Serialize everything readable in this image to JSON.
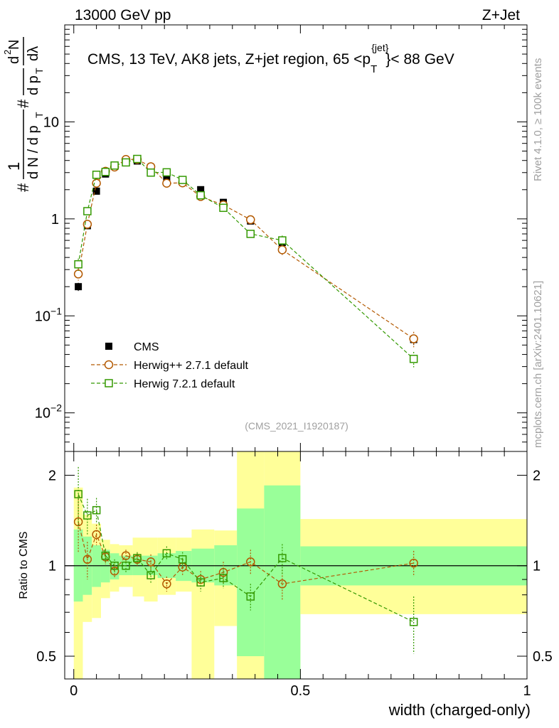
{
  "header": {
    "left": "13000 GeV pp",
    "right": "Z+Jet"
  },
  "labels": {
    "title_main": "CMS, 13 TeV, AK8 jets, Z+jet region, 65 <p",
    "title_sup": "{jet}",
    "title_sub": "T",
    "title_end": "}< 88 GeV",
    "analysis_id": "(CMS_2021_I1920187)",
    "side_rivet": "Rivet 4.1.0, ≥ 100k events",
    "side_mcplots": "mcplots.cern.ch [arXiv:2401.10621]",
    "xlabel": "width (charged-only)",
    "ratio_ylabel": "Ratio to CMS"
  },
  "colors": {
    "data": "#000000",
    "herwigpp": "#b35900",
    "herwig7": "#339900",
    "band_inner": "#99ff99",
    "band_outer": "#ffff99"
  },
  "chart_data": [
    {
      "type": "scatter",
      "name": "main",
      "yscale": "log",
      "ylim": [
        0.004,
        100
      ],
      "xlim": [
        -0.02,
        1.0
      ],
      "yticks": [
        {
          "v": 0.01,
          "base": "10",
          "exp": "−2"
        },
        {
          "v": 0.1,
          "base": "10",
          "exp": "−1"
        },
        {
          "v": 1,
          "base": "1",
          "exp": ""
        },
        {
          "v": 10,
          "base": "10",
          "exp": ""
        }
      ],
      "ylabel_parts": [
        "#",
        "1",
        "d N / d p",
        "T",
        "#",
        "d p",
        "T",
        "d",
        "2",
        "N",
        "dλ"
      ],
      "legend": [
        "CMS",
        "Herwig++ 2.7.1 default",
        "Herwig 7.2.1 default"
      ],
      "legend_position": "middle-left",
      "x": [
        0.01,
        0.03,
        0.05,
        0.07,
        0.09,
        0.115,
        0.14,
        0.17,
        0.205,
        0.24,
        0.28,
        0.33,
        0.39,
        0.46,
        0.75
      ],
      "series": [
        {
          "name": "CMS",
          "values": [
            0.2,
            0.85,
            1.93,
            2.9,
            3.52,
            3.8,
            3.95,
            3.38,
            2.7,
            2.42,
            2.0,
            1.48,
            0.95,
            0.57,
            0.057
          ]
        },
        {
          "name": "Herwig++ 2.7.1 default",
          "values": [
            0.27,
            0.88,
            2.33,
            3.1,
            3.42,
            4.1,
            4.1,
            3.45,
            2.33,
            2.35,
            1.7,
            1.39,
            0.98,
            0.48,
            0.058
          ]
        },
        {
          "name": "Herwig 7.2.1 default",
          "values": [
            0.34,
            1.2,
            2.85,
            3.05,
            3.55,
            3.82,
            4.15,
            3.0,
            3.02,
            2.52,
            1.75,
            1.3,
            0.7,
            0.6,
            0.036
          ]
        }
      ]
    },
    {
      "type": "scatter",
      "name": "ratio",
      "yscale": "log",
      "ylim": [
        0.42,
        2.4
      ],
      "xlim": [
        -0.02,
        1.0
      ],
      "yticks": [
        0.5,
        1,
        2
      ],
      "xticks": [
        0,
        0.5,
        1
      ],
      "bins": [
        0,
        0.02,
        0.04,
        0.06,
        0.08,
        0.1,
        0.13,
        0.155,
        0.185,
        0.225,
        0.26,
        0.31,
        0.36,
        0.42,
        0.5,
        1.0
      ],
      "band_inner": [
        [
          0.76,
          1.32
        ],
        [
          0.8,
          1.25
        ],
        [
          0.85,
          1.17
        ],
        [
          0.88,
          1.13
        ],
        [
          0.9,
          1.1
        ],
        [
          0.93,
          1.08
        ],
        [
          0.93,
          1.08
        ],
        [
          0.93,
          1.08
        ],
        [
          0.91,
          1.1
        ],
        [
          0.89,
          1.12
        ],
        [
          0.88,
          1.14
        ],
        [
          0.86,
          1.17
        ],
        [
          0.5,
          1.55
        ],
        [
          0.42,
          1.85
        ],
        [
          0.86,
          1.16
        ]
      ],
      "band_outer": [
        [
          0.4,
          1.82
        ],
        [
          0.65,
          1.48
        ],
        [
          0.67,
          1.38
        ],
        [
          0.78,
          1.22
        ],
        [
          0.82,
          1.18
        ],
        [
          0.85,
          1.17
        ],
        [
          0.79,
          1.24
        ],
        [
          0.76,
          1.24
        ],
        [
          0.8,
          1.24
        ],
        [
          0.82,
          1.24
        ],
        [
          0.42,
          1.32
        ],
        [
          0.63,
          1.31
        ],
        [
          0.42,
          2.4
        ],
        [
          0.42,
          2.4
        ],
        [
          0.69,
          1.43
        ]
      ],
      "series": [
        {
          "name": "Herwig++ 2.7.1 default",
          "values": [
            1.4,
            1.05,
            1.27,
            1.07,
            0.96,
            1.08,
            1.05,
            1.03,
            0.87,
            0.99,
            0.9,
            0.95,
            1.03,
            0.87,
            1.02
          ]
        },
        {
          "name": "Herwig 7.2.1 default",
          "values": [
            1.73,
            1.47,
            1.53,
            1.08,
            1.0,
            1.0,
            1.06,
            0.93,
            1.1,
            1.05,
            0.88,
            0.91,
            0.79,
            1.06,
            0.65
          ]
        }
      ],
      "errors": {
        "Herwig++ 2.7.1 default": [
          0.3,
          0.15,
          0.1,
          0.06,
          0.05,
          0.05,
          0.05,
          0.06,
          0.05,
          0.06,
          0.06,
          0.08,
          0.1,
          0.1,
          0.1
        ],
        "Herwig 7.2.1 default": [
          0.4,
          0.2,
          0.15,
          0.06,
          0.05,
          0.05,
          0.05,
          0.06,
          0.06,
          0.06,
          0.06,
          0.07,
          0.08,
          0.12,
          0.14
        ]
      }
    }
  ]
}
